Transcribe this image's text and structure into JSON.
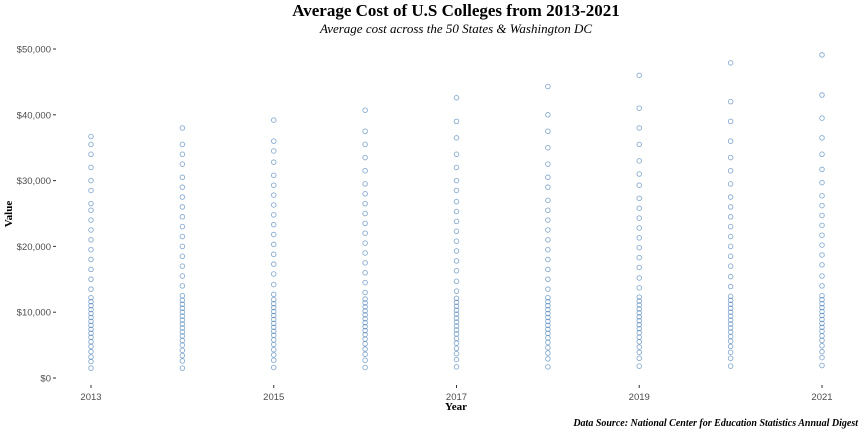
{
  "chart_data": {
    "type": "scatter",
    "title": "Average Cost of U.S Colleges from 2013-2021",
    "subtitle": "Average cost across the 50 States & Washington DC",
    "xlabel": "Year",
    "ylabel": "Value",
    "caption": "Data Source: National Center for Education Statistics Annual Digest",
    "x_ticks": [
      "2013",
      "2015",
      "2017",
      "2019",
      "2021"
    ],
    "y_ticks": [
      "$0",
      "$10,000",
      "$20,000",
      "$30,000",
      "$40,000",
      "$50,000"
    ],
    "xlim": [
      2013,
      2021
    ],
    "ylim": [
      0,
      50000
    ],
    "grid": false,
    "marker": "hollow-circle",
    "point_color": "#3a74b0",
    "series": [
      {
        "x": 2013,
        "values": [
          1500,
          2500,
          3200,
          4000,
          4800,
          5500,
          6200,
          6800,
          7400,
          8000,
          8600,
          9200,
          9800,
          10400,
          11000,
          11600,
          12200,
          13500,
          15000,
          16500,
          18000,
          19500,
          21000,
          22500,
          24000,
          25500,
          26500,
          28500,
          30000,
          32000,
          34000,
          35500,
          36700
        ]
      },
      {
        "x": 2014,
        "values": [
          1500,
          2600,
          3400,
          4200,
          5000,
          5700,
          6400,
          7000,
          7600,
          8200,
          8800,
          9400,
          10000,
          10600,
          11200,
          11800,
          12500,
          14000,
          15500,
          17000,
          18500,
          20000,
          21500,
          23000,
          24500,
          26000,
          27500,
          29000,
          30500,
          32500,
          34000,
          35500,
          38000
        ]
      },
      {
        "x": 2015,
        "values": [
          1600,
          2700,
          3500,
          4300,
          5100,
          5800,
          6500,
          7100,
          7700,
          8300,
          8900,
          9500,
          10100,
          10700,
          11300,
          11900,
          12700,
          14200,
          15800,
          17300,
          18800,
          20300,
          21800,
          23300,
          24800,
          26300,
          27800,
          29300,
          30800,
          32800,
          34500,
          36000,
          39200
        ]
      },
      {
        "x": 2016,
        "values": [
          1600,
          2700,
          3600,
          4400,
          5200,
          5900,
          6600,
          7200,
          7800,
          8400,
          9000,
          9600,
          10200,
          10800,
          11400,
          12000,
          13000,
          14500,
          16000,
          17500,
          19000,
          20500,
          22000,
          23500,
          25000,
          26500,
          28000,
          29500,
          31500,
          33500,
          35500,
          37500,
          40700
        ]
      },
      {
        "x": 2017,
        "values": [
          1700,
          2800,
          3700,
          4500,
          5300,
          6000,
          6700,
          7300,
          7900,
          8500,
          9100,
          9700,
          10300,
          10900,
          11500,
          12100,
          13200,
          14700,
          16300,
          17800,
          19300,
          20800,
          22300,
          23800,
          25300,
          26800,
          28500,
          30000,
          32000,
          34000,
          36500,
          39000,
          42600
        ]
      },
      {
        "x": 2018,
        "values": [
          1700,
          2900,
          3800,
          4600,
          5400,
          6100,
          6800,
          7400,
          8000,
          8600,
          9200,
          9800,
          10400,
          11000,
          11600,
          12200,
          13500,
          15000,
          16500,
          18000,
          19500,
          21000,
          22500,
          24000,
          25500,
          27000,
          29000,
          30500,
          32500,
          35000,
          37500,
          40000,
          44300
        ]
      },
      {
        "x": 2019,
        "values": [
          1800,
          3000,
          3900,
          4700,
          5500,
          6200,
          6900,
          7500,
          8100,
          8700,
          9300,
          9900,
          10500,
          11100,
          11700,
          12300,
          13700,
          15200,
          16800,
          18300,
          19800,
          21300,
          22800,
          24300,
          25800,
          27300,
          29300,
          31000,
          33000,
          35500,
          38000,
          41000,
          46000
        ]
      },
      {
        "x": 2020,
        "values": [
          1800,
          3000,
          3900,
          4800,
          5600,
          6300,
          7000,
          7600,
          8200,
          8800,
          9400,
          10000,
          10600,
          11200,
          11800,
          12400,
          13900,
          15400,
          17000,
          18500,
          20000,
          21500,
          23000,
          24500,
          26000,
          27500,
          29500,
          31500,
          33500,
          36000,
          39000,
          42000,
          47900
        ]
      },
      {
        "x": 2021,
        "values": [
          1900,
          3100,
          4000,
          4900,
          5700,
          6400,
          7100,
          7700,
          8300,
          8900,
          9500,
          10100,
          10700,
          11300,
          11900,
          12500,
          14000,
          15500,
          17200,
          18700,
          20200,
          21700,
          23200,
          24700,
          26200,
          27700,
          29700,
          31700,
          34000,
          36500,
          39500,
          43000,
          49100
        ]
      }
    ]
  }
}
